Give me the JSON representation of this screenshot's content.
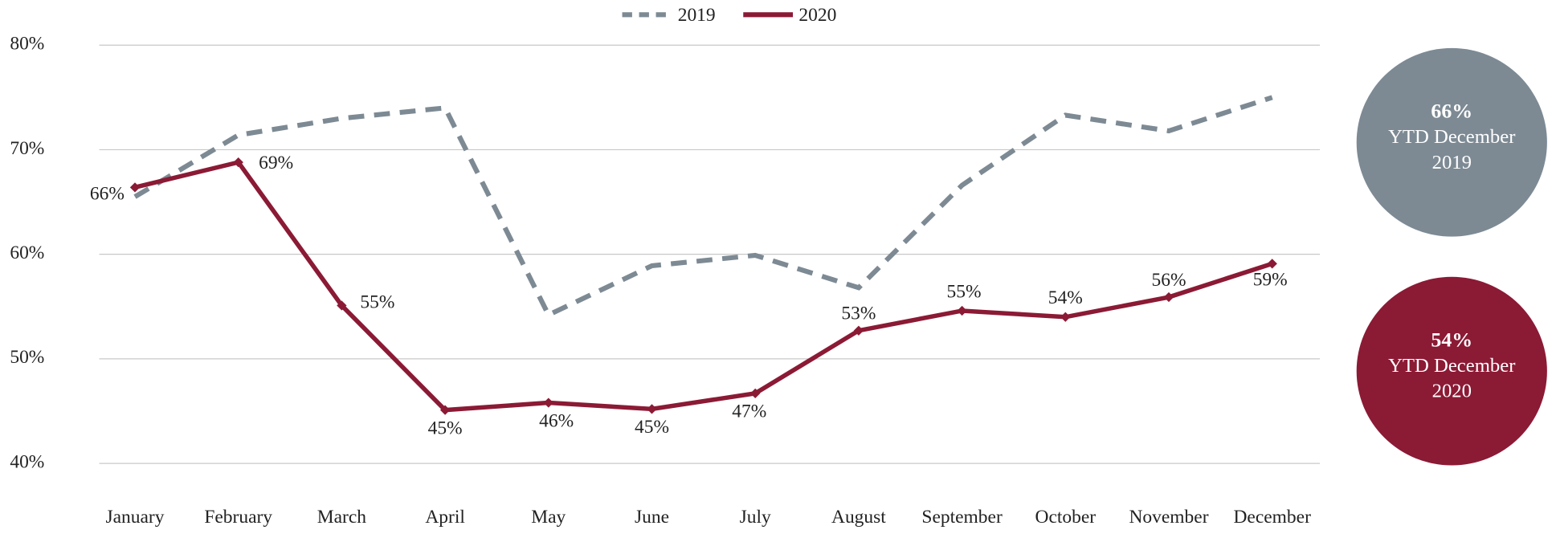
{
  "chart_data": {
    "type": "line",
    "categories": [
      "January",
      "February",
      "March",
      "April",
      "May",
      "June",
      "July",
      "August",
      "September",
      "October",
      "November",
      "December"
    ],
    "series": [
      {
        "name": "2019",
        "color": "#7d8a94",
        "dashed": true,
        "values": [
          65.5,
          71.4,
          73.0,
          74.0,
          54.2,
          58.9,
          59.9,
          56.8,
          66.6,
          73.3,
          71.8,
          75.0
        ]
      },
      {
        "name": "2020",
        "color": "#8b1a35",
        "dashed": false,
        "values": [
          66.4,
          68.8,
          55.1,
          45.1,
          45.8,
          45.2,
          46.7,
          52.7,
          54.6,
          54.0,
          55.9,
          59.1
        ],
        "value_labels": [
          "66%",
          "69%",
          "55%",
          "45%",
          "46%",
          "45%",
          "47%",
          "53%",
          "55%",
          "54%",
          "56%",
          "59%"
        ]
      }
    ],
    "ylim": [
      40,
      80
    ],
    "yticks": [
      {
        "value": 40,
        "label": "40%"
      },
      {
        "value": 50,
        "label": "50%"
      },
      {
        "value": 60,
        "label": "60%"
      },
      {
        "value": 70,
        "label": "70%"
      },
      {
        "value": 80,
        "label": "80%"
      }
    ],
    "grid": true,
    "legend": "top",
    "annotations": [
      {
        "value_text": "66%",
        "lines": [
          "YTD December",
          "2019"
        ],
        "color": "#7d8a94"
      },
      {
        "value_text": "54%",
        "lines": [
          "YTD December",
          "2020"
        ],
        "color": "#8b1a35"
      }
    ]
  }
}
